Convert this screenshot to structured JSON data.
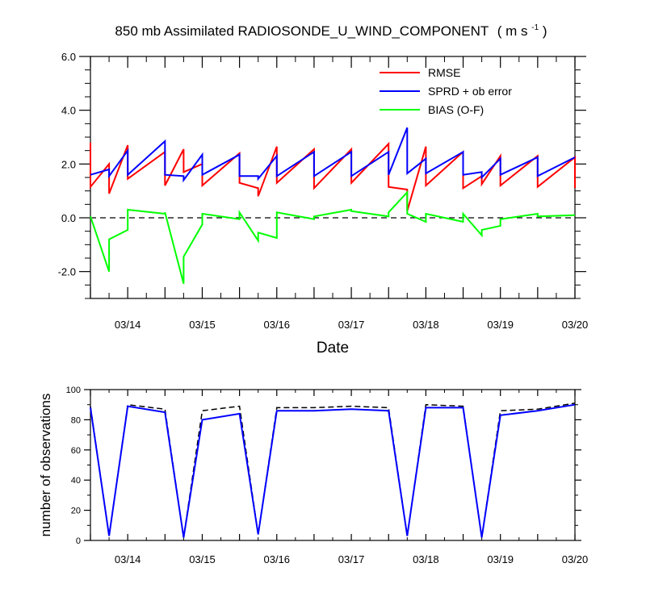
{
  "title": "850 mb Assimilated RADIOSONDE_U_WIND_COMPONENT",
  "title_units": {
    "prefix": "( m s",
    "superscript": "-1",
    "suffix": " )"
  },
  "chart_data": [
    {
      "type": "line",
      "xlabel": "Date",
      "ylabel": "",
      "xlim": [
        13.5,
        20.0
      ],
      "ylim": [
        -3.0,
        6.0
      ],
      "x_ticks": [
        {
          "v": 14,
          "label": "03/14"
        },
        {
          "v": 15,
          "label": "03/15"
        },
        {
          "v": 16,
          "label": "03/16"
        },
        {
          "v": 17,
          "label": "03/17"
        },
        {
          "v": 18,
          "label": "03/18"
        },
        {
          "v": 19,
          "label": "03/19"
        },
        {
          "v": 20,
          "label": "03/20"
        }
      ],
      "y_ticks": [
        {
          "v": -2,
          "label": "-2.0"
        },
        {
          "v": 0,
          "label": "0.0"
        },
        {
          "v": 2,
          "label": "2.0"
        },
        {
          "v": 4,
          "label": "4.0"
        },
        {
          "v": 6,
          "label": "6.0"
        }
      ],
      "reference_line": 0.0,
      "legend_position": "top-right",
      "series": [
        {
          "name": "RMSE",
          "color": "#ff0000",
          "x": [
            13.5,
            13.5,
            13.75,
            13.75,
            14.0,
            14.0,
            14.5,
            14.5,
            14.75,
            14.75,
            15.0,
            15.0,
            15.5,
            15.5,
            15.75,
            15.75,
            16.0,
            16.0,
            16.5,
            16.5,
            17.0,
            17.0,
            17.5,
            17.5,
            17.75,
            17.75,
            18.0,
            18.0,
            18.5,
            18.5,
            18.75,
            18.75,
            19.0,
            19.0,
            19.5,
            19.5,
            20.0,
            20.0
          ],
          "y": [
            2.8,
            1.15,
            2.0,
            0.9,
            2.7,
            1.45,
            2.45,
            1.2,
            2.55,
            1.7,
            2.0,
            1.2,
            2.4,
            1.3,
            1.1,
            0.8,
            2.65,
            1.3,
            2.55,
            1.1,
            2.55,
            1.3,
            2.75,
            1.15,
            1.05,
            0.25,
            2.65,
            1.2,
            2.45,
            1.1,
            1.55,
            1.25,
            2.3,
            1.2,
            2.3,
            1.15,
            2.25,
            1.1
          ]
        },
        {
          "name": "SPRD + ob error",
          "color": "#0000ff",
          "x": [
            13.5,
            13.75,
            13.75,
            14.0,
            14.0,
            14.5,
            14.5,
            14.75,
            14.75,
            15.0,
            15.0,
            15.5,
            15.5,
            15.75,
            15.75,
            16.0,
            16.0,
            16.5,
            16.5,
            17.0,
            17.0,
            17.5,
            17.5,
            17.75,
            17.75,
            18.0,
            18.0,
            18.5,
            18.5,
            18.75,
            18.75,
            19.0,
            19.0,
            19.5,
            19.5,
            20.0
          ],
          "y": [
            1.6,
            1.8,
            1.55,
            2.5,
            1.6,
            2.85,
            1.6,
            1.55,
            1.4,
            2.35,
            1.6,
            2.35,
            1.55,
            1.55,
            1.45,
            2.3,
            1.55,
            2.45,
            1.55,
            2.45,
            1.55,
            2.45,
            1.6,
            3.35,
            1.65,
            2.2,
            1.65,
            2.45,
            1.6,
            1.7,
            1.5,
            2.2,
            1.6,
            2.25,
            1.55,
            2.25
          ]
        },
        {
          "name": "BIAS (O-F)",
          "color": "#00ff00",
          "x": [
            13.5,
            13.75,
            13.75,
            14.0,
            14.0,
            14.5,
            14.5,
            14.75,
            14.75,
            15.0,
            15.0,
            15.5,
            15.5,
            15.75,
            15.75,
            16.0,
            16.0,
            16.5,
            16.5,
            17.0,
            17.0,
            17.5,
            17.5,
            17.75,
            17.75,
            18.0,
            18.0,
            18.5,
            18.5,
            18.75,
            18.75,
            19.0,
            19.0,
            19.5,
            19.5,
            20.0
          ],
          "y": [
            0.05,
            -2.0,
            -0.8,
            -0.45,
            0.3,
            0.15,
            0.2,
            -2.45,
            -1.45,
            -0.25,
            0.15,
            -0.05,
            0.2,
            -0.85,
            -0.55,
            -0.75,
            0.2,
            -0.05,
            0.05,
            0.3,
            0.25,
            0.05,
            0.2,
            0.95,
            0.15,
            -0.15,
            0.15,
            -0.15,
            0.15,
            -0.65,
            -0.45,
            -0.3,
            -0.05,
            0.15,
            0.05,
            0.1
          ]
        }
      ]
    },
    {
      "type": "line",
      "xlabel": "",
      "ylabel": "number of observations",
      "xlim": [
        13.5,
        20.0
      ],
      "ylim": [
        0,
        100
      ],
      "x_ticks": [
        {
          "v": 14,
          "label": "03/14"
        },
        {
          "v": 15,
          "label": "03/15"
        },
        {
          "v": 16,
          "label": "03/16"
        },
        {
          "v": 17,
          "label": "03/17"
        },
        {
          "v": 18,
          "label": "03/18"
        },
        {
          "v": 19,
          "label": "03/19"
        },
        {
          "v": 20,
          "label": "03/20"
        }
      ],
      "y_ticks": [
        {
          "v": 0,
          "label": "0"
        },
        {
          "v": 20,
          "label": "20"
        },
        {
          "v": 40,
          "label": "40"
        },
        {
          "v": 60,
          "label": "60"
        },
        {
          "v": 80,
          "label": "80"
        },
        {
          "v": 100,
          "label": "100"
        }
      ],
      "series": [
        {
          "color": "#000000",
          "dash": true,
          "x": [
            13.5,
            13.75,
            14.0,
            14.5,
            14.75,
            15.0,
            15.5,
            15.75,
            16.0,
            16.5,
            17.0,
            17.5,
            17.75,
            18.0,
            18.5,
            18.75,
            19.0,
            19.5,
            20.0
          ],
          "y": [
            89,
            3,
            90,
            87,
            2,
            86,
            89,
            4,
            88,
            88,
            89,
            88,
            3,
            90,
            89,
            2,
            86,
            87,
            91
          ]
        },
        {
          "color": "#0000ff",
          "dash": false,
          "x": [
            13.5,
            13.75,
            14.0,
            14.5,
            14.75,
            15.0,
            15.5,
            15.75,
            16.0,
            16.5,
            17.0,
            17.5,
            17.75,
            18.0,
            18.5,
            18.75,
            19.0,
            19.5,
            20.0
          ],
          "y": [
            88,
            3,
            89,
            85,
            2,
            80,
            84,
            4,
            86,
            86,
            87,
            86,
            3,
            88,
            88,
            2,
            83,
            86,
            90
          ]
        }
      ]
    }
  ]
}
